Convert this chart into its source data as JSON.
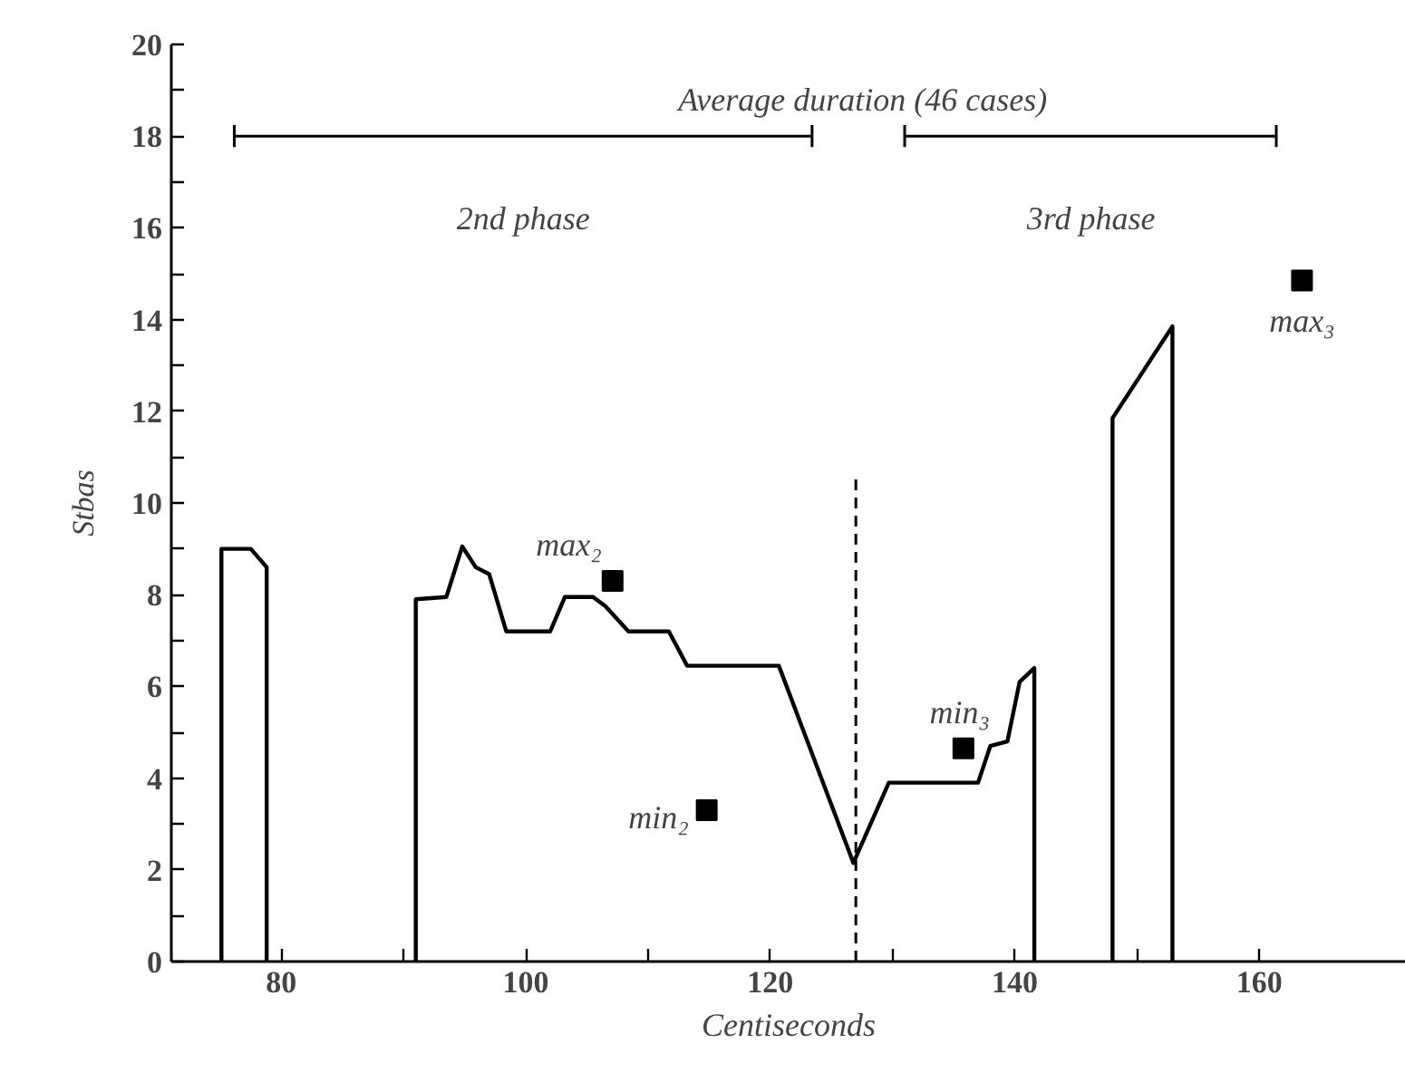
{
  "chart_data": {
    "type": "line",
    "xlabel": "Centiseconds",
    "ylabel": "Stbas",
    "xlim": [
      71,
      172
    ],
    "ylim": [
      0,
      20
    ],
    "xticks": [
      80,
      {
        "value": 90,
        "label": null
      },
      100,
      {
        "value": 110,
        "label": null
      },
      120,
      {
        "value": 130,
        "label": null
      },
      140,
      {
        "value": 150,
        "label": null
      },
      160
    ],
    "yticks": [
      0,
      {
        "value": 1,
        "label": null
      },
      2,
      {
        "value": 3,
        "label": null
      },
      4,
      {
        "value": 5,
        "label": null
      },
      6,
      {
        "value": 7,
        "label": null
      },
      8,
      {
        "value": 9,
        "label": null
      },
      10,
      {
        "value": 11,
        "label": null
      },
      12,
      {
        "value": 13,
        "label": null
      },
      14,
      {
        "value": 15,
        "label": null
      },
      16,
      {
        "value": 17,
        "label": null
      },
      18,
      {
        "value": 19,
        "label": null
      },
      20
    ],
    "grid": false,
    "line_style": "solid",
    "marker": "none",
    "series": [
      {
        "type": "line",
        "color": "#000000",
        "x": [
          75.1,
          75.1,
          77.5,
          78.8,
          78.8
        ],
        "values": [
          0,
          9.0,
          9.0,
          8.6,
          0
        ]
      },
      {
        "type": "line",
        "color": "#000000",
        "x": [
          91.0,
          91.0,
          93.5,
          94.8,
          95.9,
          97.0,
          98.4,
          102.0,
          103.2,
          105.5,
          106.5,
          108.4,
          111.7,
          113.2,
          120.7,
          126.8,
          129.7,
          137.0,
          138.0,
          139.4,
          140.4,
          141.6,
          141.6
        ],
        "values": [
          0,
          7.9,
          7.95,
          9.05,
          8.6,
          8.45,
          7.2,
          7.2,
          7.95,
          7.95,
          7.75,
          7.2,
          7.2,
          6.45,
          6.45,
          2.15,
          3.9,
          3.9,
          4.7,
          4.8,
          6.1,
          6.4,
          0
        ]
      },
      {
        "type": "line",
        "color": "#000000",
        "x": [
          148.0,
          148.0,
          152.9,
          152.9
        ],
        "values": [
          0,
          11.85,
          13.85,
          0
        ]
      },
      {
        "type": "scatter",
        "color": "#000000",
        "marker": "square",
        "x": [
          107.1,
          114.8,
          135.8,
          163.5
        ],
        "values": [
          8.3,
          3.3,
          4.65,
          14.85
        ]
      }
    ],
    "ref_lines": [
      {
        "axis": "x",
        "value": 127,
        "line_style": "dashed",
        "color": "#000000"
      }
    ],
    "annotations": [
      "Average duration (46 cases)",
      "2nd phase",
      "3rd phase",
      {
        "text": "max₂",
        "x": 107.1,
        "y": 8.3
      },
      {
        "text": "min₂",
        "x": 114.8,
        "y": 3.3
      },
      {
        "text": "min₃",
        "x": 135.8,
        "y": 4.65
      },
      {
        "text": "max₃",
        "x": 163.5,
        "y": 14.85
      }
    ]
  }
}
